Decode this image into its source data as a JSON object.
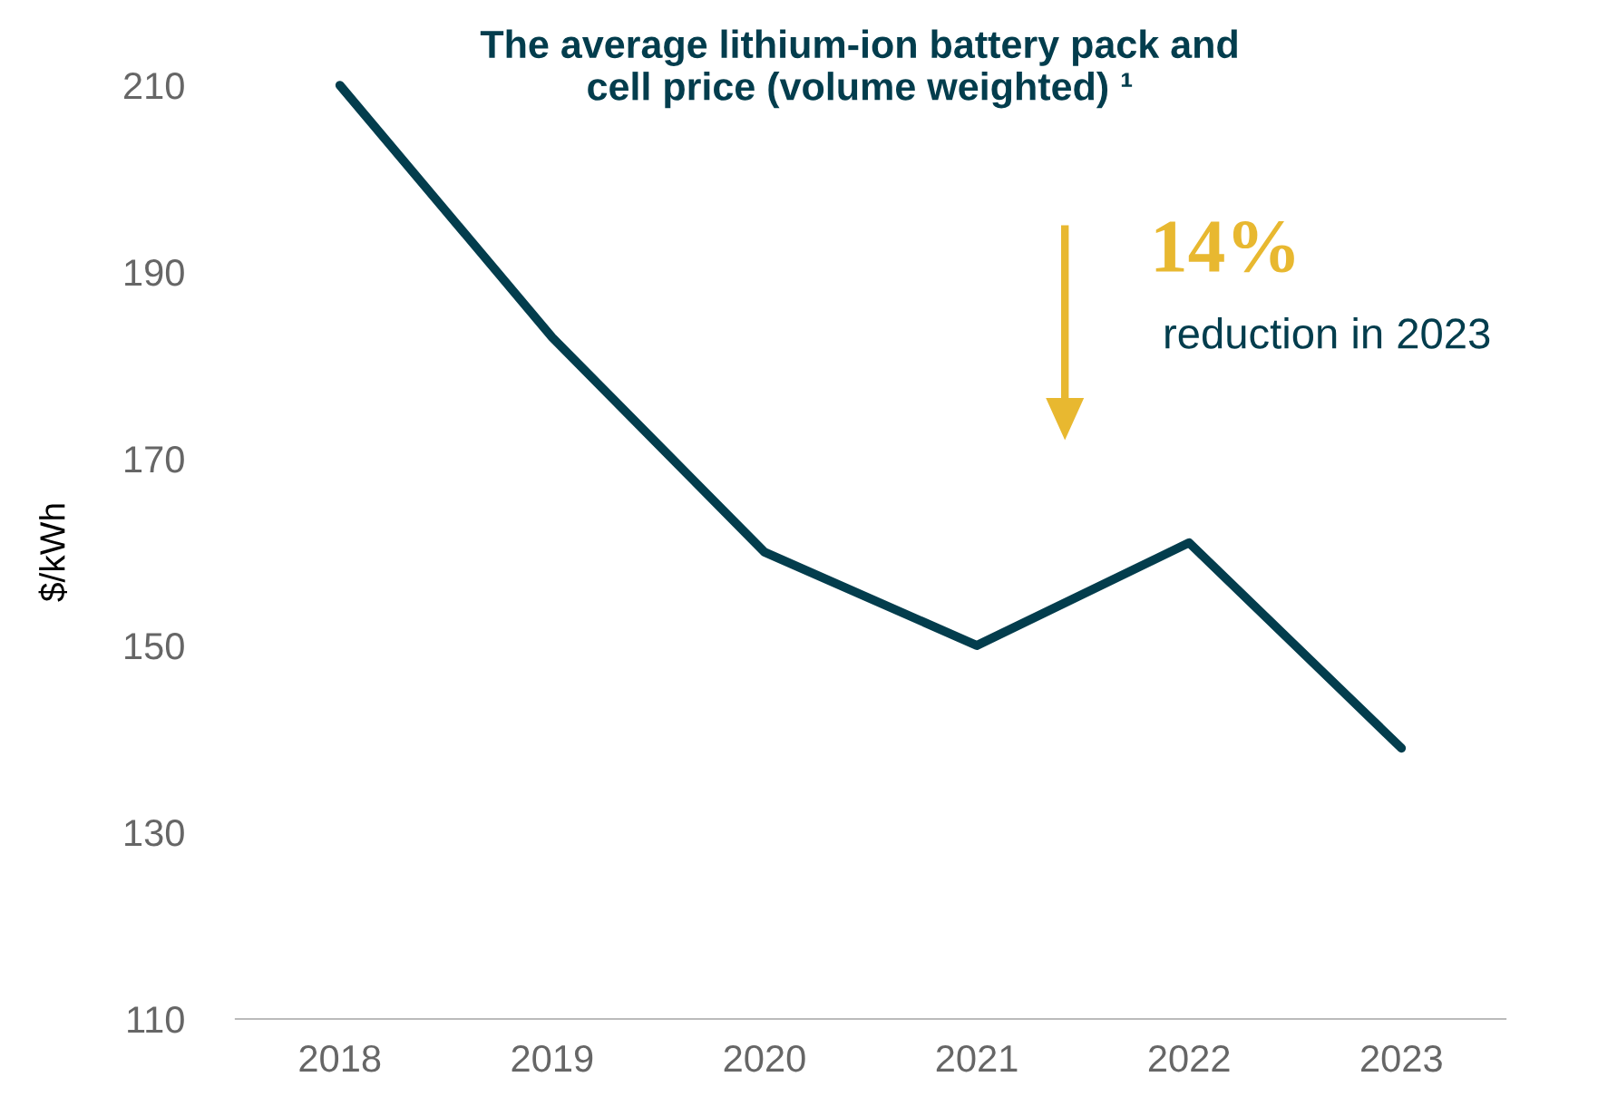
{
  "chart_data": {
    "type": "line",
    "title": "The average lithium-ion battery pack and\ncell price (volume weighted) ¹",
    "ylabel": "$/kWh",
    "categories": [
      "2018",
      "2019",
      "2020",
      "2021",
      "2022",
      "2023"
    ],
    "series": [
      {
        "color": "#033d4d",
        "values": [
          210,
          183,
          160,
          150,
          161,
          139
        ]
      }
    ],
    "ylim": [
      110,
      210
    ],
    "yticks": [
      110,
      130,
      150,
      170,
      190,
      210
    ],
    "annotations": [
      "14%",
      "reduction in 2023"
    ],
    "grid": false,
    "legend": false,
    "marker": "none",
    "line_style": "solid"
  }
}
